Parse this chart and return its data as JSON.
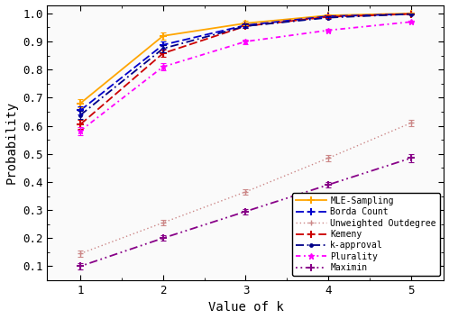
{
  "xlabel": "Value of k",
  "ylabel": "Probability",
  "xlim": [
    0.6,
    5.4
  ],
  "ylim": [
    0.05,
    1.03
  ],
  "x": [
    1,
    2,
    3,
    4,
    5
  ],
  "series": {
    "MLE-Sampling": {
      "y": [
        0.68,
        0.92,
        0.965,
        0.993,
        1.0
      ],
      "yerr": [
        0.015,
        0.012,
        0.008,
        0.004,
        0.002
      ]
    },
    "Borda Count": {
      "y": [
        0.655,
        0.888,
        0.958,
        0.99,
        0.998
      ],
      "yerr": [
        0.015,
        0.012,
        0.008,
        0.004,
        0.002
      ]
    },
    "Unweighted Outdegree": {
      "y": [
        0.145,
        0.255,
        0.365,
        0.485,
        0.61
      ],
      "yerr": [
        0.01,
        0.01,
        0.01,
        0.01,
        0.01
      ]
    },
    "Kemeny": {
      "y": [
        0.605,
        0.858,
        0.955,
        0.988,
        0.998
      ],
      "yerr": [
        0.015,
        0.012,
        0.008,
        0.004,
        0.002
      ]
    },
    "k-approval": {
      "y": [
        0.638,
        0.875,
        0.955,
        0.985,
        0.998
      ],
      "yerr": [
        0.015,
        0.012,
        0.008,
        0.004,
        0.002
      ]
    },
    "Plurality": {
      "y": [
        0.582,
        0.81,
        0.9,
        0.94,
        0.97
      ],
      "yerr": [
        0.015,
        0.012,
        0.008,
        0.004,
        0.002
      ]
    },
    "Maximin": {
      "y": [
        0.1,
        0.2,
        0.295,
        0.39,
        0.485
      ],
      "yerr": [
        0.01,
        0.01,
        0.01,
        0.01,
        0.015
      ]
    }
  },
  "legend_order": [
    "MLE-Sampling",
    "Borda Count",
    "Unweighted Outdegree",
    "Kemeny",
    "k-approval",
    "Plurality",
    "Maximin"
  ],
  "bg_color": "#FAFAFA",
  "yticks": [
    0.1,
    0.2,
    0.3,
    0.4,
    0.5,
    0.6,
    0.7,
    0.8,
    0.9,
    1.0
  ]
}
